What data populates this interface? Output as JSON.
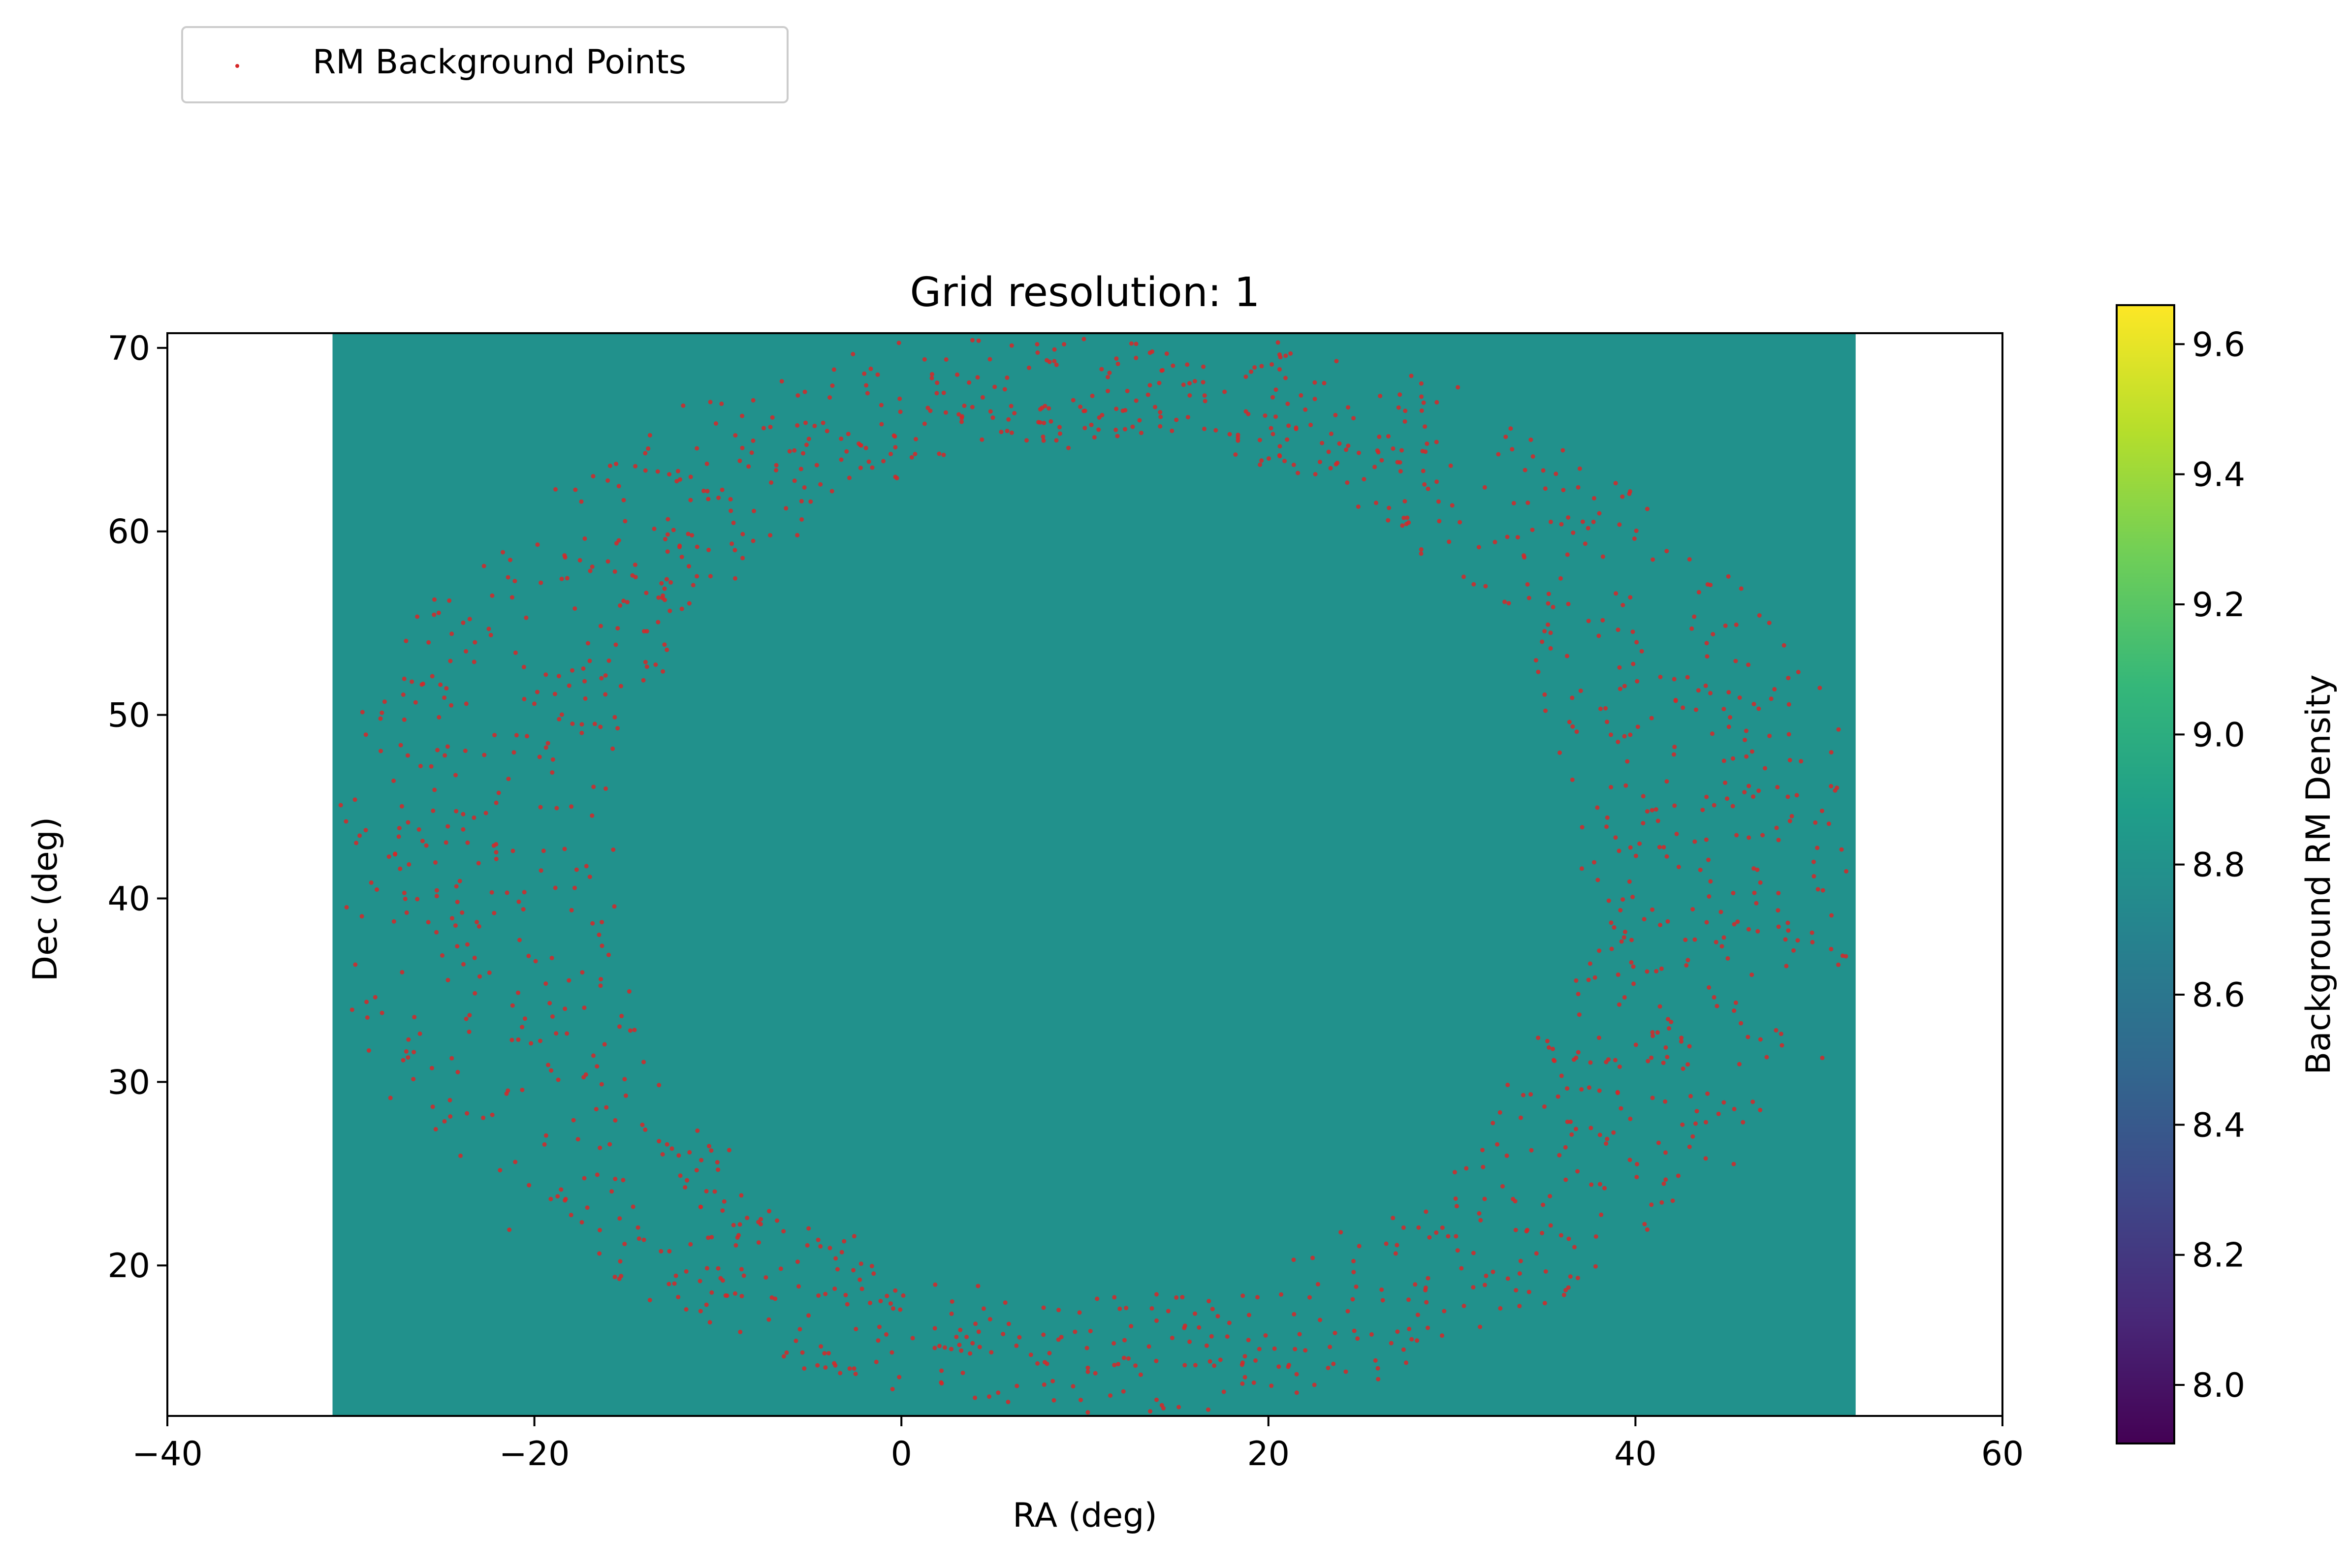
{
  "chart_data": {
    "type": "scatter",
    "title": "Grid resolution: 1",
    "xlabel": "RA (deg)",
    "ylabel": "Dec (deg)",
    "xlim": [
      -40,
      60
    ],
    "ylim": [
      11.8,
      70.8
    ],
    "xticks": [
      -40,
      -20,
      0,
      20,
      40,
      60
    ],
    "xtick_labels": [
      "−40",
      "−20",
      "0",
      "20",
      "40",
      "60"
    ],
    "yticks": [
      20,
      30,
      40,
      50,
      60,
      70
    ],
    "ytick_labels": [
      "20",
      "30",
      "40",
      "50",
      "60",
      "70"
    ],
    "grid": false,
    "legend": {
      "placement": "top-left, outside axes",
      "entries": [
        {
          "label": "RM Background Points",
          "color": "#d62728"
        }
      ]
    },
    "heatmap": {
      "x_extent": [
        -31,
        52
      ],
      "y_extent": [
        11.8,
        70.8
      ],
      "value": 8.79,
      "color": "#21918c",
      "cmap": "viridis"
    },
    "colorbar": {
      "label": "Background RM Density",
      "range": [
        7.91,
        9.66
      ],
      "ticks": [
        8.0,
        8.2,
        8.4,
        8.6,
        8.8,
        9.0,
        9.2,
        9.4,
        9.6
      ],
      "tick_labels": [
        "8.0",
        "8.2",
        "8.4",
        "8.6",
        "8.8",
        "9.0",
        "9.2",
        "9.4",
        "9.6"
      ],
      "colors": [
        "#440154",
        "#482878",
        "#3e4989",
        "#31688e",
        "#26828e",
        "#1f9e89",
        "#35b779",
        "#6ece58",
        "#b5de2b",
        "#fde725"
      ]
    },
    "series": [
      {
        "name": "RM Background Points",
        "color": "#d62728",
        "distribution": "elliptical annulus",
        "center": [
          10.5,
          41.5
        ],
        "inner_radii": [
          26.5,
          23.5
        ],
        "outer_radii": [
          41.5,
          29.5
        ],
        "point_count": 1500
      }
    ]
  }
}
